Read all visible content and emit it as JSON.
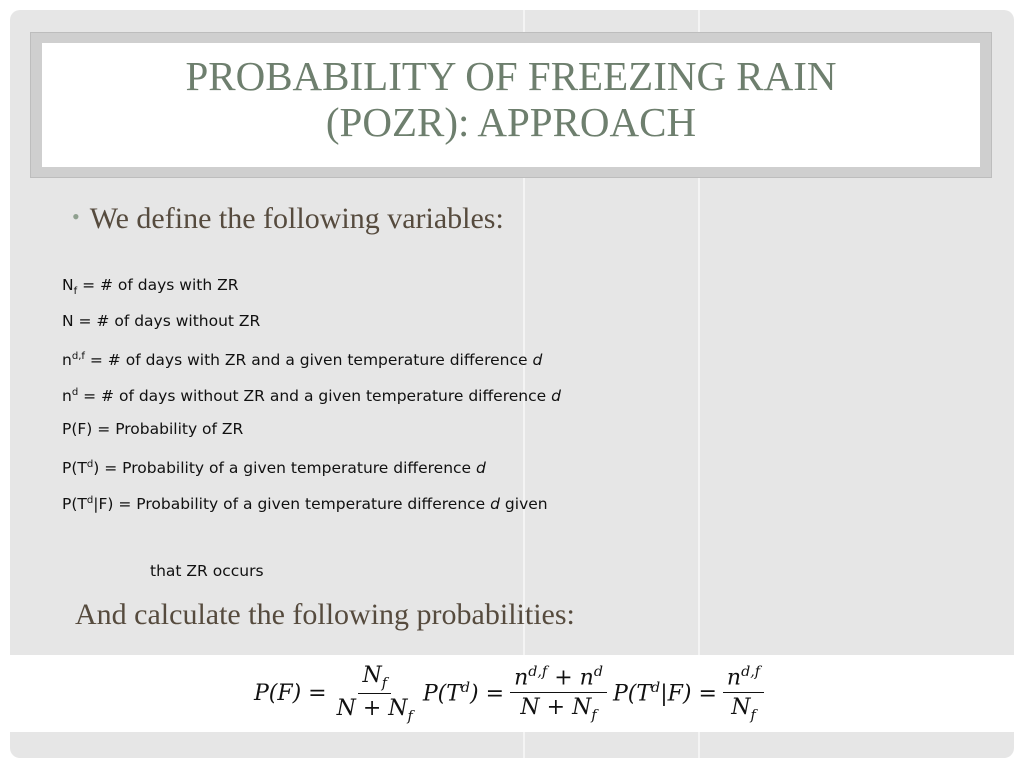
{
  "title": {
    "lines": [
      "PROBABILITY OF FREEZING RAIN",
      "(POZR): APPROACH"
    ]
  },
  "bullet": "We define the following variables:",
  "definitions": [
    [
      {
        "text": "N"
      },
      {
        "text": "f",
        "style": "sub"
      },
      {
        "text": " = # of days with ZR"
      }
    ],
    [
      {
        "text": "N = # of days without ZR"
      }
    ],
    [
      {
        "text": "n"
      },
      {
        "text": "d,f",
        "style": "sup"
      },
      {
        "text": " = # of days with ZR and a given temperature difference "
      },
      {
        "text": "d",
        "style": "italic"
      }
    ],
    [
      {
        "text": "n"
      },
      {
        "text": "d",
        "style": "sup"
      },
      {
        "text": " = # of days without ZR and a given temperature difference "
      },
      {
        "text": "d",
        "style": "italic"
      }
    ],
    [
      {
        "text": "P(F) = Probability of ZR"
      }
    ],
    [
      {
        "text": "P(T"
      },
      {
        "text": "d",
        "style": "sup"
      },
      {
        "text": ") = Probability of a given temperature difference "
      },
      {
        "text": "d",
        "style": "italic"
      }
    ],
    [
      {
        "text": "P(T"
      },
      {
        "text": "d",
        "style": "sup"
      },
      {
        "text": "|F) = Probability of a given temperature difference "
      },
      {
        "text": "d",
        "style": "italic"
      },
      {
        "text": " given"
      }
    ]
  ],
  "continuation": "that ZR occurs",
  "calculate": "And calculate the following probabilities:",
  "formulas": [
    {
      "lhs": [
        {
          "text": "P(F) ="
        }
      ],
      "num": [
        {
          "text": "N"
        },
        {
          "text": "f",
          "style": "sub"
        }
      ],
      "den": [
        {
          "text": "N + N"
        },
        {
          "text": "f",
          "style": "sub"
        }
      ]
    },
    {
      "lhs": [
        {
          "text": "P(T"
        },
        {
          "text": "d",
          "style": "sup"
        },
        {
          "text": ") ="
        }
      ],
      "num": [
        {
          "text": "n"
        },
        {
          "text": "d,f",
          "style": "sup"
        },
        {
          "text": " + n"
        },
        {
          "text": "d",
          "style": "sup"
        }
      ],
      "den": [
        {
          "text": "N + N"
        },
        {
          "text": "f",
          "style": "sub"
        }
      ]
    },
    {
      "lhs": [
        {
          "text": "P(T"
        },
        {
          "text": "d",
          "style": "sup"
        },
        {
          "text": "|F) ="
        }
      ],
      "num": [
        {
          "text": "n"
        },
        {
          "text": "d,f",
          "style": "sup"
        }
      ],
      "den": [
        {
          "text": "N"
        },
        {
          "text": "f",
          "style": "sub"
        }
      ]
    }
  ]
}
